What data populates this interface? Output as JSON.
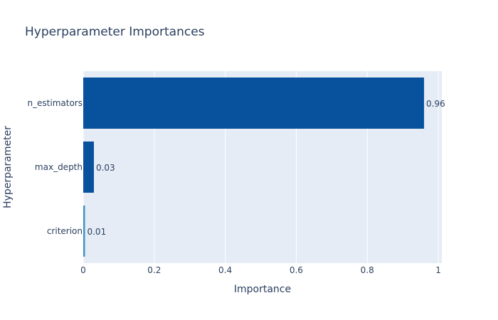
{
  "chart_data": {
    "type": "bar",
    "orientation": "horizontal",
    "title": "Hyperparameter Importances",
    "xlabel": "Importance",
    "ylabel": "Hyperparameter",
    "xlim": [
      0,
      1.01
    ],
    "xticks": [
      0,
      0.2,
      0.4,
      0.6,
      0.8,
      1
    ],
    "xtick_labels": [
      "0",
      "0.2",
      "0.4",
      "0.6",
      "0.8",
      "1"
    ],
    "grid": true,
    "legend": "none",
    "categories": [
      "n_estimators",
      "max_depth",
      "criterion"
    ],
    "values": [
      0.96,
      0.03,
      0.005
    ],
    "labels": [
      "0.96",
      "0.03",
      "0.01"
    ],
    "bar_colors": [
      "#08519c",
      "#08519c",
      "#4292c6"
    ]
  },
  "colors": {
    "plot_background": "#e5ecf6",
    "grid": "#ffffff",
    "text": "#2a3f5f"
  }
}
